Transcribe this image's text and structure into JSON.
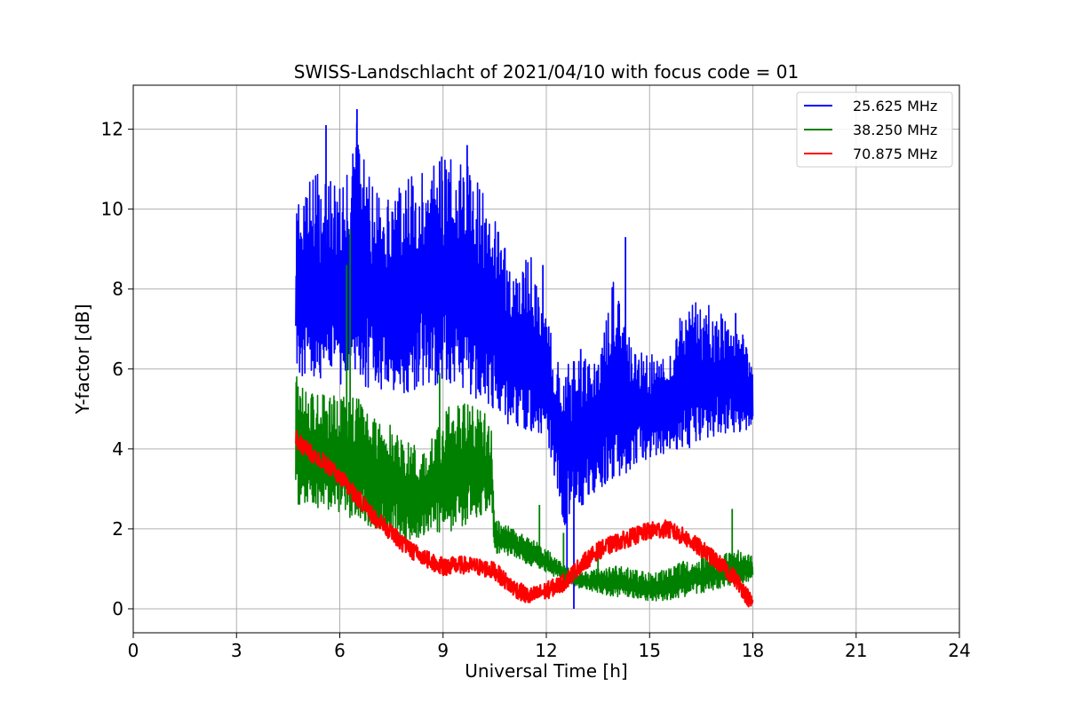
{
  "chart_data": {
    "type": "line",
    "title": "SWISS-Landschlacht of 2021/04/10 with focus code = 01",
    "xlabel": "Universal Time [h]",
    "ylabel": "Y-factor [dB]",
    "xlim": [
      0,
      24
    ],
    "ylim": [
      -0.6,
      13.1
    ],
    "xticks": [
      0,
      3,
      6,
      9,
      12,
      15,
      18,
      21,
      24
    ],
    "yticks": [
      0,
      2,
      4,
      6,
      8,
      10,
      12
    ],
    "grid": true,
    "legend_position": "top-right",
    "series": [
      {
        "name": "25.625 MHz",
        "color": "#0000ff",
        "x": [
          4.72,
          5.0,
          5.5,
          6.0,
          6.5,
          7.0,
          7.5,
          8.0,
          8.5,
          9.0,
          9.5,
          10.0,
          10.5,
          11.0,
          11.5,
          12.0,
          12.5,
          13.0,
          13.5,
          14.0,
          14.5,
          15.0,
          15.5,
          16.0,
          16.5,
          17.0,
          17.5,
          18.0
        ],
        "low": [
          5.9,
          5.8,
          5.7,
          5.6,
          5.6,
          5.5,
          5.4,
          5.3,
          5.6,
          5.5,
          5.6,
          5.2,
          5.0,
          4.5,
          4.4,
          4.3,
          2.0,
          2.5,
          3.0,
          3.2,
          3.5,
          3.8,
          3.9,
          4.0,
          4.1,
          4.3,
          4.4,
          4.5
        ],
        "high": [
          10.2,
          10.6,
          11.0,
          10.5,
          12.2,
          10.5,
          10.3,
          10.8,
          11.2,
          11.4,
          11.3,
          10.8,
          9.8,
          8.5,
          9.0,
          7.2,
          6.4,
          6.3,
          6.1,
          8.5,
          6.5,
          6.5,
          6.2,
          7.6,
          7.8,
          7.4,
          7.5,
          6.0
        ],
        "spikes": [
          [
            5.6,
            12.1
          ],
          [
            6.5,
            12.5
          ],
          [
            8.9,
            11.2
          ],
          [
            9.7,
            11.6
          ],
          [
            14.3,
            9.3
          ],
          [
            11.9,
            8.6
          ],
          [
            13.0,
            6.5
          ],
          [
            17.5,
            7.4
          ],
          [
            12.8,
            0.0
          ],
          [
            12.6,
            0.6
          ]
        ]
      },
      {
        "name": "38.250 MHz",
        "color": "#008000",
        "x": [
          4.72,
          5.0,
          5.5,
          6.0,
          6.5,
          7.0,
          7.5,
          8.0,
          8.5,
          9.0,
          9.5,
          10.0,
          10.4,
          10.5,
          11.0,
          11.5,
          12.0,
          12.5,
          13.0,
          13.5,
          14.0,
          14.5,
          15.0,
          15.5,
          16.0,
          16.5,
          17.0,
          17.5,
          18.0
        ],
        "low": [
          2.6,
          2.6,
          2.5,
          2.4,
          2.2,
          2.0,
          1.8,
          1.6,
          1.8,
          1.9,
          2.0,
          2.3,
          2.5,
          1.4,
          1.3,
          1.1,
          0.9,
          0.7,
          0.5,
          0.4,
          0.3,
          0.2,
          0.2,
          0.2,
          0.3,
          0.4,
          0.5,
          0.6,
          0.7
        ],
        "high": [
          5.9,
          5.5,
          5.4,
          5.3,
          5.3,
          4.8,
          4.6,
          4.2,
          4.0,
          5.0,
          5.3,
          5.0,
          4.8,
          2.3,
          2.0,
          1.8,
          1.5,
          1.1,
          0.9,
          1.0,
          1.1,
          1.0,
          0.9,
          1.0,
          1.2,
          1.3,
          1.3,
          1.5,
          1.3
        ],
        "spikes": [
          [
            6.3,
            9.5
          ],
          [
            6.2,
            8.6
          ],
          [
            8.9,
            5.9
          ],
          [
            11.8,
            2.6
          ],
          [
            17.4,
            2.5
          ],
          [
            13.5,
            1.6
          ],
          [
            12.5,
            1.9
          ]
        ]
      },
      {
        "name": "70.875 MHz",
        "color": "#ff0000",
        "x": [
          4.72,
          5.0,
          5.5,
          6.0,
          6.5,
          7.0,
          7.5,
          8.0,
          8.5,
          9.0,
          9.5,
          10.0,
          10.5,
          11.0,
          11.5,
          12.0,
          12.5,
          13.0,
          13.5,
          14.0,
          14.5,
          15.0,
          15.5,
          16.0,
          16.5,
          17.0,
          17.5,
          18.0
        ],
        "y": [
          4.25,
          4.0,
          3.7,
          3.3,
          2.8,
          2.3,
          1.9,
          1.5,
          1.25,
          1.05,
          1.1,
          1.05,
          0.95,
          0.55,
          0.3,
          0.45,
          0.65,
          1.1,
          1.45,
          1.65,
          1.8,
          1.95,
          2.0,
          1.8,
          1.5,
          1.15,
          0.75,
          0.1
        ],
        "band": 0.22
      }
    ]
  }
}
